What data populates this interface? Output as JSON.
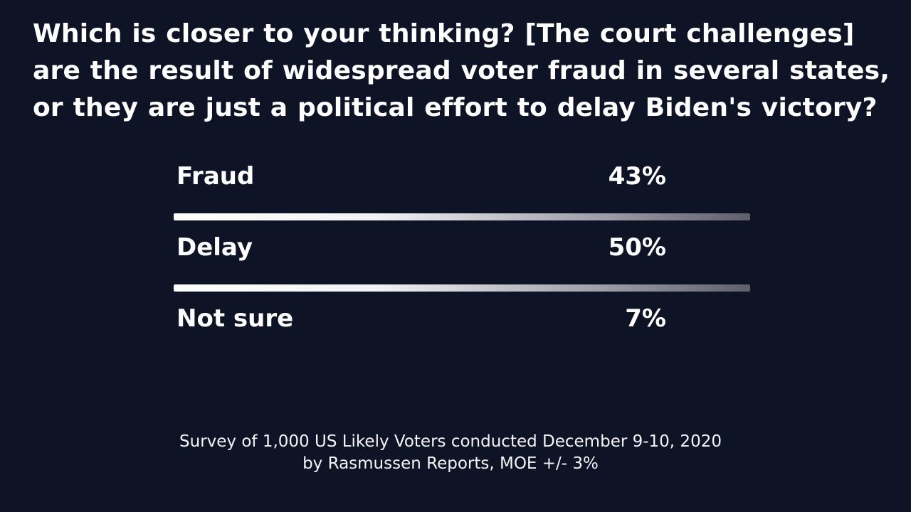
{
  "question": {
    "lines": [
      "Which is closer to your thinking?  [The court challenges]",
      "are the result of widespread voter fraud in several states,",
      "or they are just a political effort to delay Biden's victory?"
    ]
  },
  "results": [
    {
      "label": "Fraud",
      "value": "43%"
    },
    {
      "label": "Delay",
      "value": "50%"
    },
    {
      "label": "Not sure",
      "value": "7%"
    }
  ],
  "footer": {
    "lines": [
      "Survey of 1,000 US Likely Voters conducted December 9-10, 2020",
      "by Rasmussen Reports, MOE +/- 3%"
    ]
  }
}
